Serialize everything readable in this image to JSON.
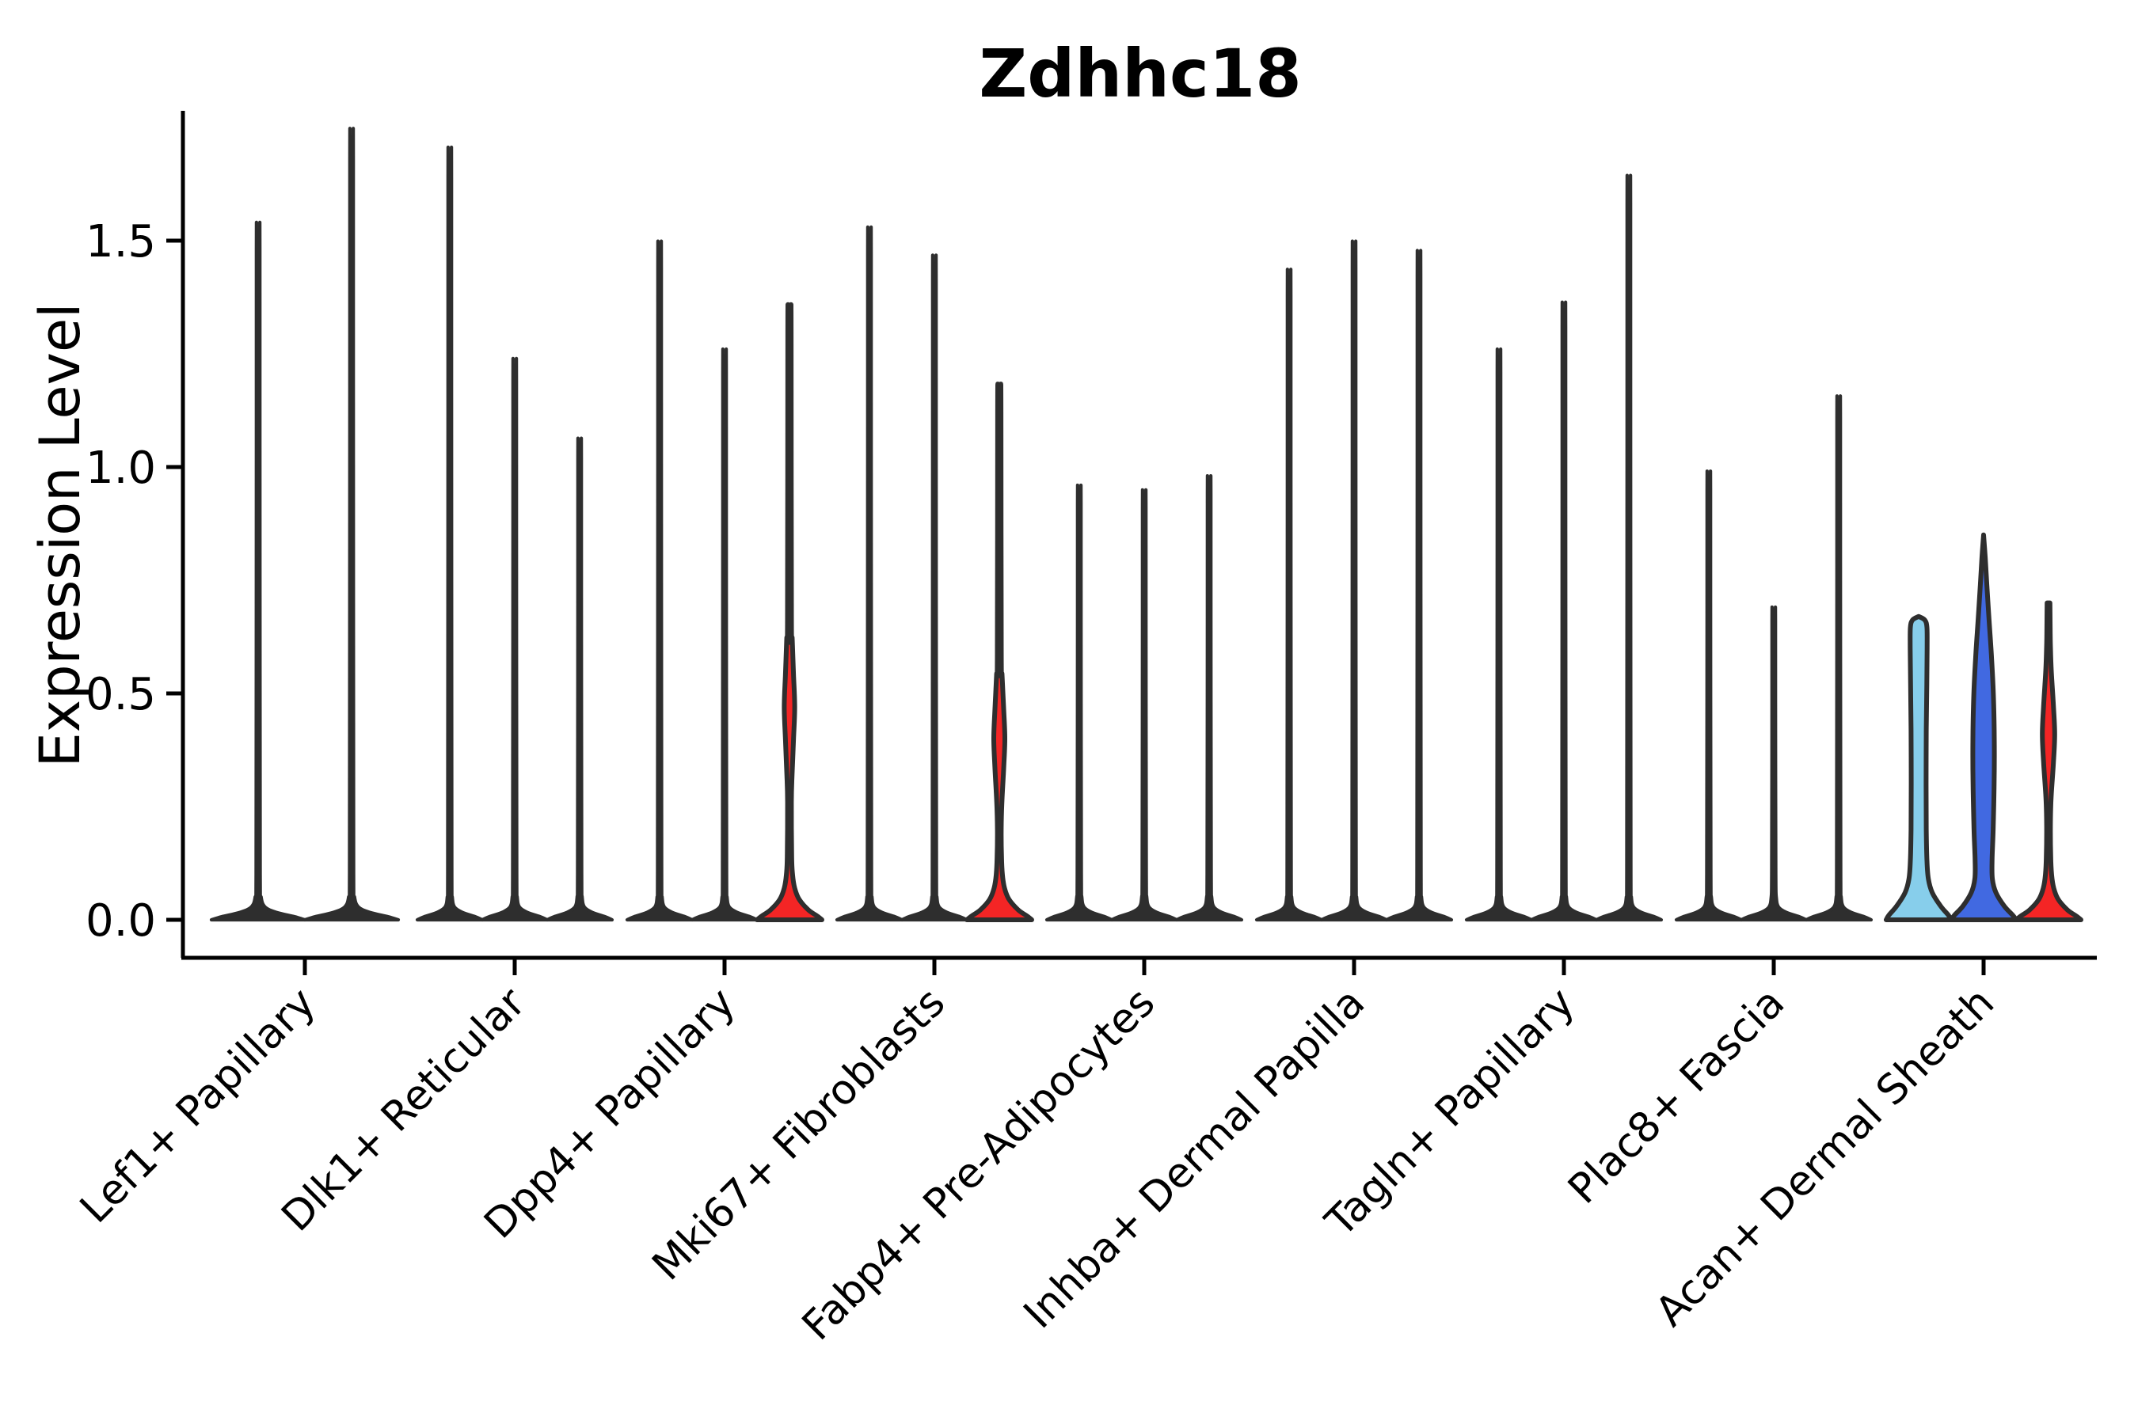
{
  "title": "Zdhhc18",
  "chart_data": {
    "type": "violin",
    "title": "Zdhhc18",
    "xlabel": "",
    "ylabel": "Expression Level",
    "ylim": [
      0,
      1.79
    ],
    "yticks": [
      0.0,
      0.5,
      1.0,
      1.5
    ],
    "ytick_labels": [
      "0.0",
      "0.5",
      "1.0",
      "1.5"
    ],
    "grid": false,
    "legend": "none",
    "categories": [
      "Lef1+ Papillary",
      "Dlk1+ Reticular",
      "Dpp4+ Papillary",
      "Mki67+ Fibroblasts",
      "Fabp4+ Pre-Adipocytes",
      "Inhba+ Dermal Papilla",
      "Tagln+ Papillary",
      "Plac8+ Fascia",
      "Acan+ Dermal Sheath"
    ],
    "palette": {
      "outline": "#2e2e2e",
      "axis": "#000000",
      "skyblue": "#87CEEB",
      "royalblue": "#4169E1",
      "red": "#F42525"
    },
    "groups": [
      {
        "category": "Lef1+ Papillary",
        "violins": [
          {
            "shape": "needle",
            "max": 1.5,
            "fill": null
          },
          {
            "shape": "needle",
            "max": 1.7,
            "fill": null
          }
        ]
      },
      {
        "category": "Dlk1+ Reticular",
        "violins": [
          {
            "shape": "needle",
            "max": 1.66,
            "fill": null
          },
          {
            "shape": "needle",
            "max": 1.21,
            "fill": null
          },
          {
            "shape": "needle",
            "max": 1.04,
            "fill": null
          }
        ]
      },
      {
        "category": "Dpp4+ Papillary",
        "violins": [
          {
            "shape": "needle",
            "max": 1.46,
            "fill": null
          },
          {
            "shape": "needle",
            "max": 1.23,
            "fill": null
          },
          {
            "shape": "bulge",
            "max": 1.35,
            "fill": "#F42525",
            "bulge_center": 0.47,
            "bulge_halfspan": 0.15,
            "bulge_halfwidth": 0.16
          }
        ]
      },
      {
        "category": "Mki67+ Fibroblasts",
        "violins": [
          {
            "shape": "needle",
            "max": 1.49,
            "fill": null
          },
          {
            "shape": "needle",
            "max": 1.43,
            "fill": null
          },
          {
            "shape": "bulge",
            "max": 1.18,
            "fill": "#F42525",
            "bulge_center": 0.4,
            "bulge_halfspan": 0.14,
            "bulge_halfwidth": 0.17
          }
        ]
      },
      {
        "category": "Fabp4+ Pre-Adipocytes",
        "violins": [
          {
            "shape": "needle",
            "max": 0.94,
            "fill": null
          },
          {
            "shape": "needle",
            "max": 0.93,
            "fill": null
          },
          {
            "shape": "needle",
            "max": 0.96,
            "fill": null
          }
        ]
      },
      {
        "category": "Inhba+ Dermal Papilla",
        "violins": [
          {
            "shape": "needle",
            "max": 1.4,
            "fill": null
          },
          {
            "shape": "needle",
            "max": 1.46,
            "fill": null
          },
          {
            "shape": "needle",
            "max": 1.44,
            "fill": null
          }
        ]
      },
      {
        "category": "Tagln+ Papillary",
        "violins": [
          {
            "shape": "needle",
            "max": 1.23,
            "fill": null
          },
          {
            "shape": "needle",
            "max": 1.33,
            "fill": null
          },
          {
            "shape": "needle",
            "max": 1.6,
            "fill": null
          }
        ]
      },
      {
        "category": "Plac8+ Fascia",
        "violins": [
          {
            "shape": "needle",
            "max": 0.97,
            "fill": null
          },
          {
            "shape": "needle",
            "max": 0.68,
            "fill": null
          },
          {
            "shape": "needle",
            "max": 1.13,
            "fill": null
          }
        ]
      },
      {
        "category": "Acan+ Dermal Sheath",
        "violins": [
          {
            "shape": "column",
            "max": 0.67,
            "fill": "#87CEEB"
          },
          {
            "shape": "taper",
            "max": 0.85,
            "fill": "#4169E1",
            "peak": 0.4
          },
          {
            "shape": "bulge",
            "max": 0.7,
            "fill": "#F42525",
            "bulge_center": 0.41,
            "bulge_halfspan": 0.14,
            "bulge_halfwidth": 0.19
          }
        ]
      }
    ]
  }
}
